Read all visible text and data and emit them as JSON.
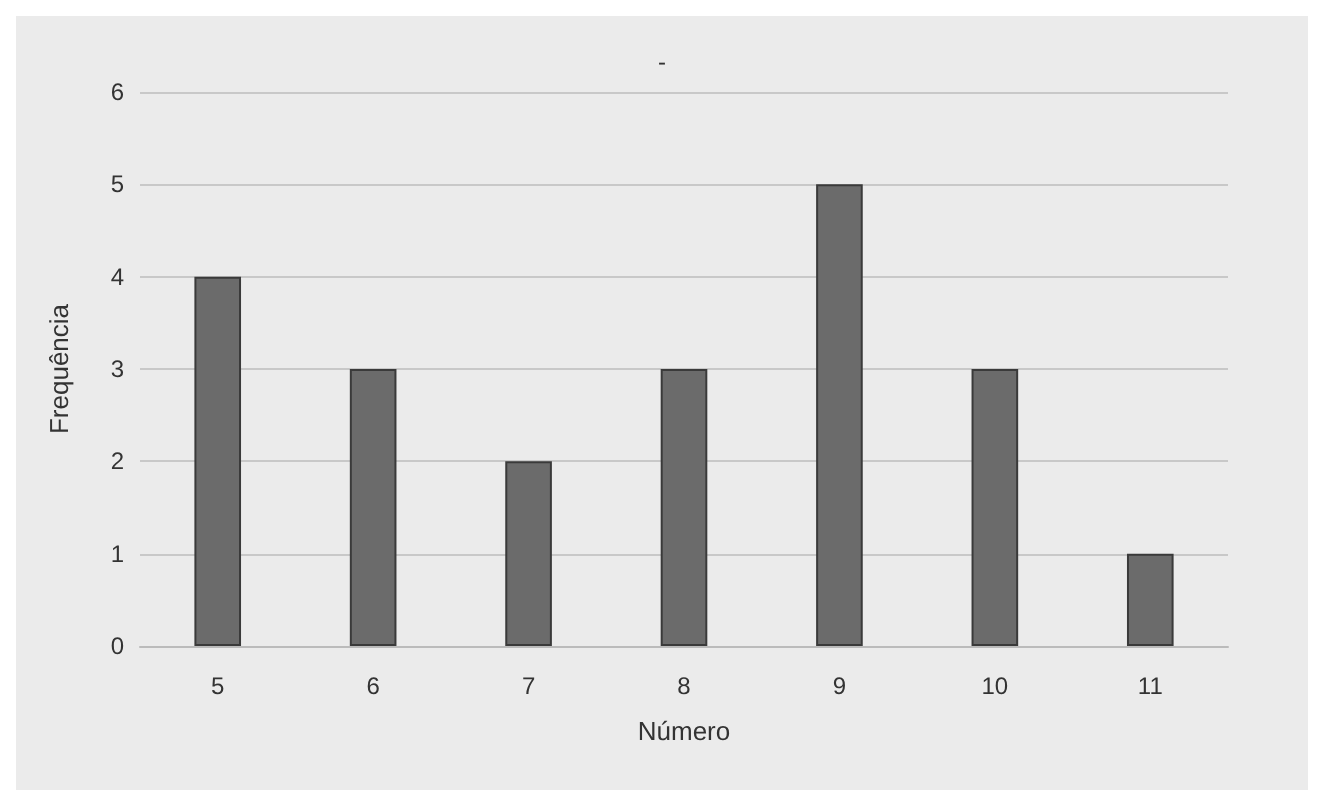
{
  "chart_data": {
    "type": "bar",
    "title": "-",
    "xlabel": "Número",
    "ylabel": "Frequência",
    "categories": [
      "5",
      "6",
      "7",
      "8",
      "9",
      "10",
      "11"
    ],
    "values": [
      4,
      3,
      2,
      3,
      5,
      3,
      1
    ],
    "color": "#6b6b6b",
    "ylim": [
      0,
      6
    ],
    "yticks": [
      0,
      1,
      2,
      3,
      4,
      5,
      6
    ],
    "grid": "y"
  }
}
